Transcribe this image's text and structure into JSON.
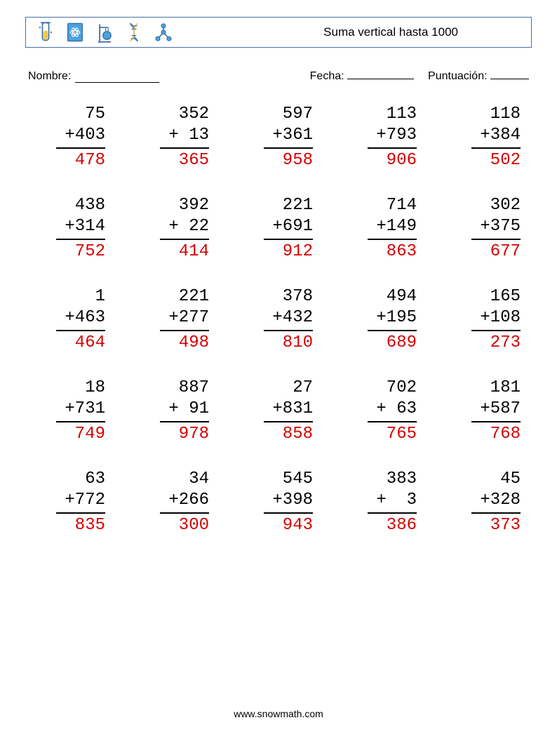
{
  "header": {
    "title": "Suma vertical hasta 1000",
    "title_fontsize": 17,
    "border_color": "#4a6fa5",
    "icons": [
      {
        "name": "test-tube-icon",
        "stroke": "#3b6ea5",
        "fill": "#f5c94c"
      },
      {
        "name": "atom-card-icon",
        "stroke": "#3b6ea5",
        "fill": "#4aa3df"
      },
      {
        "name": "flask-stand-icon",
        "stroke": "#3b6ea5",
        "fill": "#4aa3df"
      },
      {
        "name": "dna-icon",
        "stroke": "#3b6ea5",
        "fill": "#f5c94c"
      },
      {
        "name": "molecule-icon",
        "stroke": "#3b6ea5",
        "fill": "#4aa3df"
      }
    ]
  },
  "meta": {
    "name_label": "Nombre:",
    "date_label": "Fecha:",
    "score_label": "Puntuación:"
  },
  "style": {
    "problem_fontsize": 24,
    "answer_color": "#d40000",
    "text_color": "#000000",
    "background": "#ffffff",
    "columns": 5,
    "rows": 5,
    "digit_width": 3
  },
  "problems": [
    {
      "a": 75,
      "b": 403,
      "op": "+",
      "ans": 478
    },
    {
      "a": 352,
      "b": 13,
      "op": "+",
      "ans": 365
    },
    {
      "a": 597,
      "b": 361,
      "op": "+",
      "ans": 958
    },
    {
      "a": 113,
      "b": 793,
      "op": "+",
      "ans": 906
    },
    {
      "a": 118,
      "b": 384,
      "op": "+",
      "ans": 502
    },
    {
      "a": 438,
      "b": 314,
      "op": "+",
      "ans": 752
    },
    {
      "a": 392,
      "b": 22,
      "op": "+",
      "ans": 414
    },
    {
      "a": 221,
      "b": 691,
      "op": "+",
      "ans": 912
    },
    {
      "a": 714,
      "b": 149,
      "op": "+",
      "ans": 863
    },
    {
      "a": 302,
      "b": 375,
      "op": "+",
      "ans": 677
    },
    {
      "a": 1,
      "b": 463,
      "op": "+",
      "ans": 464
    },
    {
      "a": 221,
      "b": 277,
      "op": "+",
      "ans": 498
    },
    {
      "a": 378,
      "b": 432,
      "op": "+",
      "ans": 810
    },
    {
      "a": 494,
      "b": 195,
      "op": "+",
      "ans": 689
    },
    {
      "a": 165,
      "b": 108,
      "op": "+",
      "ans": 273
    },
    {
      "a": 18,
      "b": 731,
      "op": "+",
      "ans": 749
    },
    {
      "a": 887,
      "b": 91,
      "op": "+",
      "ans": 978
    },
    {
      "a": 27,
      "b": 831,
      "op": "+",
      "ans": 858
    },
    {
      "a": 702,
      "b": 63,
      "op": "+",
      "ans": 765
    },
    {
      "a": 181,
      "b": 587,
      "op": "+",
      "ans": 768
    },
    {
      "a": 63,
      "b": 772,
      "op": "+",
      "ans": 835
    },
    {
      "a": 34,
      "b": 266,
      "op": "+",
      "ans": 300
    },
    {
      "a": 545,
      "b": 398,
      "op": "+",
      "ans": 943
    },
    {
      "a": 383,
      "b": 3,
      "op": "+",
      "ans": 386
    },
    {
      "a": 45,
      "b": 328,
      "op": "+",
      "ans": 373
    }
  ],
  "footer": {
    "text": "www.snowmath.com"
  }
}
